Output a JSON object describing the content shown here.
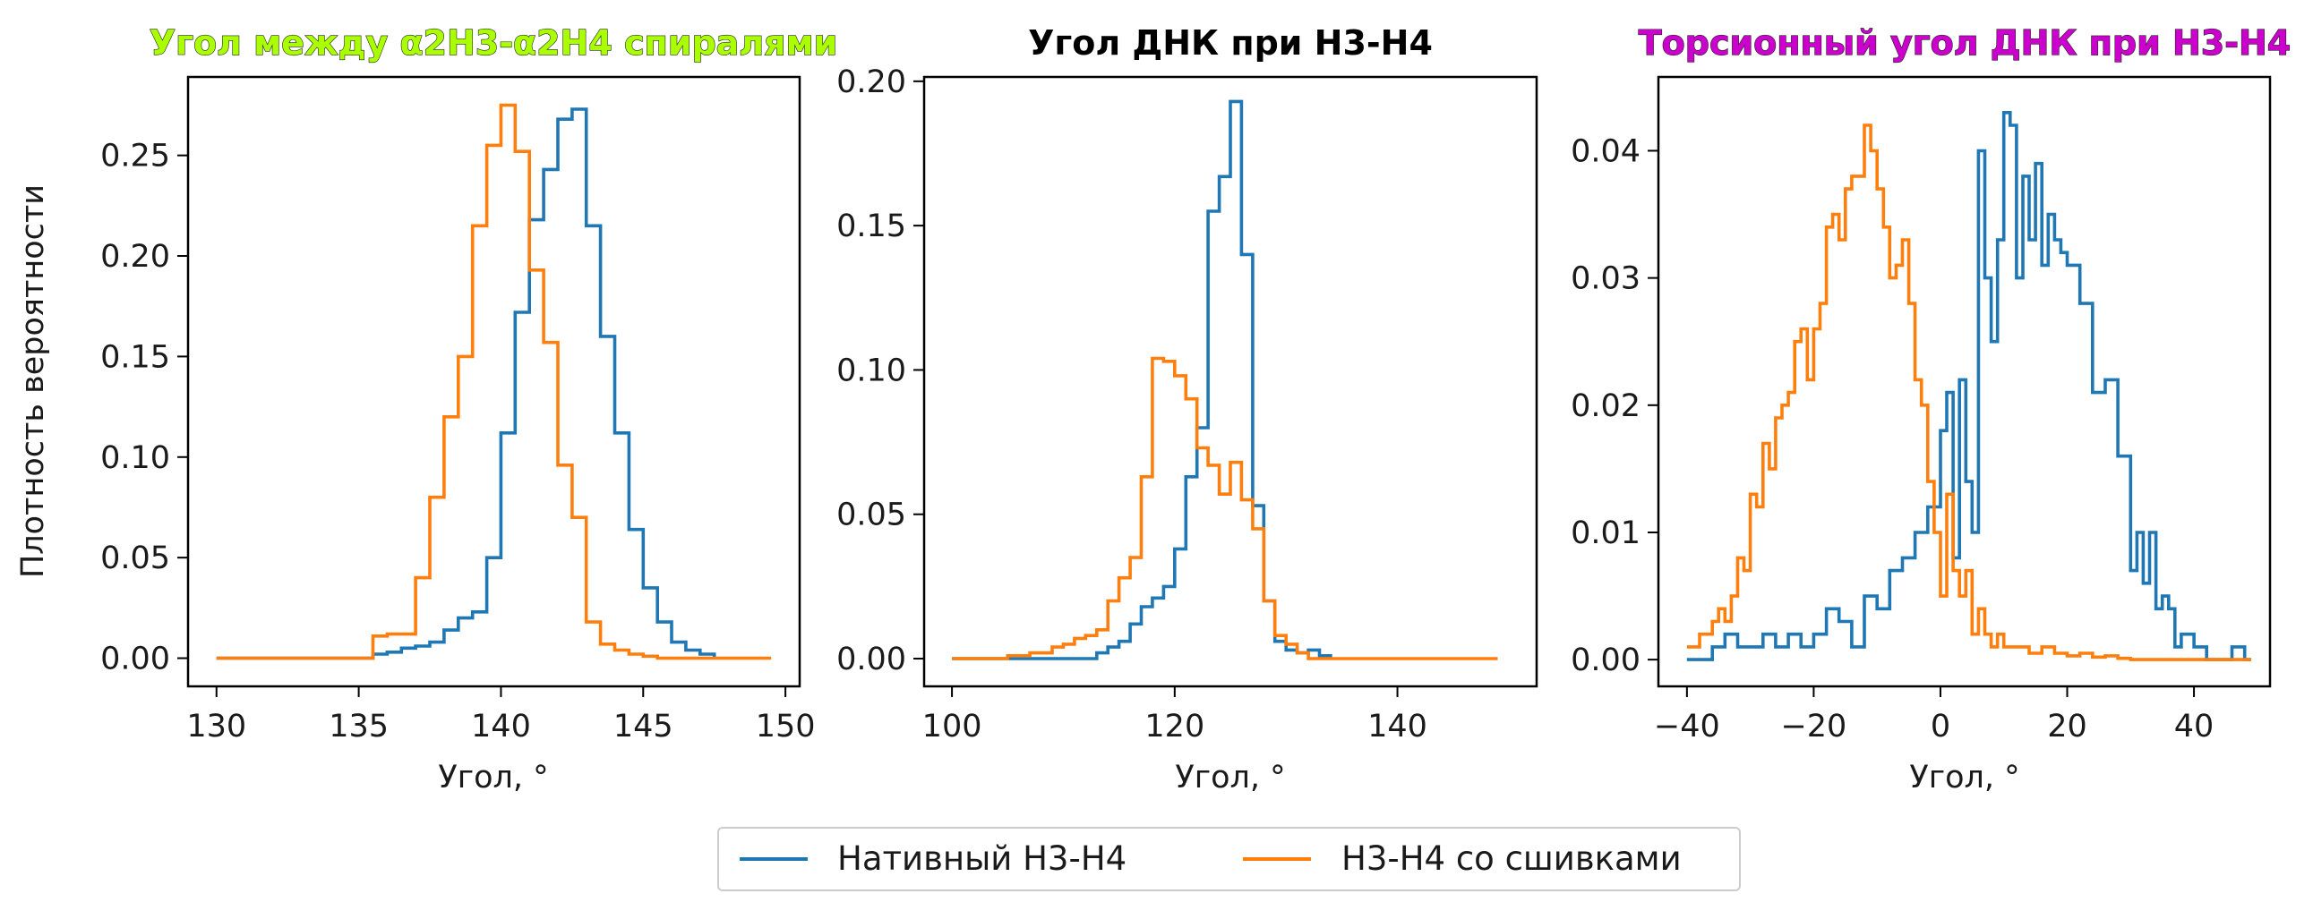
{
  "legend": {
    "entries": [
      {
        "label": "Нативный H3-H4",
        "color": "#1f77b4"
      },
      {
        "label": "H3-H4 со сшивками",
        "color": "#ff7f0e"
      }
    ]
  },
  "chart_data": [
    {
      "type": "line",
      "step": true,
      "title": "Угол между α2H3-α2H4 спиралями",
      "title_color": "#aaff00",
      "xlabel": "Угол, °",
      "ylabel": "Плотность вероятности",
      "xlim": [
        129,
        150.5
      ],
      "ylim": [
        -0.014,
        0.289
      ],
      "xticks": [
        130,
        135,
        140,
        145,
        150
      ],
      "yticks": [
        0.0,
        0.05,
        0.1,
        0.15,
        0.2,
        0.25
      ],
      "ytick_labels": [
        "0.00",
        "0.05",
        "0.10",
        "0.15",
        "0.20",
        "0.25"
      ],
      "series": [
        {
          "name": "Нативный H3-H4",
          "color": "#1f77b4",
          "x": [
            130,
            135.5,
            136,
            136.5,
            137,
            137.5,
            138,
            138.5,
            139,
            139.5,
            140,
            140.5,
            141,
            141.5,
            142,
            142.5,
            143,
            143.5,
            144,
            144.5,
            145,
            145.5,
            146,
            146.5,
            147,
            147.5
          ],
          "y": [
            0,
            0.002,
            0.003,
            0.005,
            0.006,
            0.008,
            0.014,
            0.02,
            0.023,
            0.05,
            0.112,
            0.172,
            0.218,
            0.243,
            0.268,
            0.273,
            0.215,
            0.16,
            0.112,
            0.064,
            0.035,
            0.018,
            0.008,
            0.004,
            0.002,
            0
          ]
        },
        {
          "name": "H3-H4 со сшивками",
          "color": "#ff7f0e",
          "x": [
            130,
            135.5,
            136,
            137,
            137.5,
            138,
            138.5,
            139,
            139.5,
            140,
            140.5,
            141,
            141.5,
            142,
            142.5,
            143,
            143.5,
            144,
            144.5,
            145,
            145.5,
            149.5
          ],
          "y": [
            0,
            0.011,
            0.012,
            0.04,
            0.08,
            0.12,
            0.15,
            0.215,
            0.255,
            0.275,
            0.252,
            0.193,
            0.157,
            0.096,
            0.07,
            0.018,
            0.007,
            0.004,
            0.002,
            0.001,
            0,
            0
          ]
        }
      ]
    },
    {
      "type": "line",
      "step": true,
      "title": "Угол ДНК при H3-H4",
      "title_color": "#000000",
      "xlabel": "Угол, °",
      "ylabel": "",
      "xlim": [
        97.5,
        152.5
      ],
      "ylim": [
        -0.0096,
        0.2015
      ],
      "xticks": [
        100,
        120,
        140
      ],
      "yticks": [
        0.0,
        0.05,
        0.1,
        0.15,
        0.2
      ],
      "ytick_labels": [
        "0.00",
        "0.05",
        "0.10",
        "0.15",
        "0.20"
      ],
      "series": [
        {
          "name": "Нативный H3-H4",
          "color": "#1f77b4",
          "x": [
            100,
            113,
            114,
            115,
            116,
            117,
            118,
            119,
            120,
            121,
            122,
            123,
            124,
            125,
            126,
            127,
            128,
            129,
            130,
            131,
            132,
            133,
            134
          ],
          "y": [
            0,
            0.002,
            0.004,
            0.006,
            0.012,
            0.018,
            0.021,
            0.025,
            0.038,
            0.063,
            0.08,
            0.155,
            0.167,
            0.193,
            0.14,
            0.053,
            0.02,
            0.006,
            0.003,
            0.002,
            0.003,
            0.001,
            0
          ]
        },
        {
          "name": "H3-H4 со сшивками",
          "color": "#ff7f0e",
          "x": [
            100,
            105,
            107,
            109,
            110,
            111,
            112,
            113,
            114,
            115,
            116,
            117,
            118,
            119,
            120,
            121,
            122,
            123,
            124,
            125,
            126,
            127,
            128,
            129,
            130,
            131,
            132,
            149
          ],
          "y": [
            0,
            0.001,
            0.002,
            0.004,
            0.005,
            0.007,
            0.008,
            0.01,
            0.02,
            0.028,
            0.035,
            0.063,
            0.104,
            0.103,
            0.098,
            0.09,
            0.073,
            0.067,
            0.057,
            0.068,
            0.055,
            0.045,
            0.02,
            0.008,
            0.005,
            0.002,
            0,
            0
          ]
        }
      ]
    },
    {
      "type": "line",
      "step": true,
      "title": "Торсионный угол ДНК при H3-H4",
      "title_color": "#cc00cc",
      "xlabel": "Угол, °",
      "ylabel": "",
      "xlim": [
        -44.5,
        52
      ],
      "ylim": [
        -0.0021,
        0.0458
      ],
      "xticks": [
        -40,
        -20,
        0,
        20,
        40
      ],
      "xtick_labels": [
        "−40",
        "−20",
        "0",
        "20",
        "40"
      ],
      "yticks": [
        0.0,
        0.01,
        0.02,
        0.03,
        0.04
      ],
      "ytick_labels": [
        "0.00",
        "0.01",
        "0.02",
        "0.03",
        "0.04"
      ],
      "series": [
        {
          "name": "Нативный H3-H4",
          "color": "#1f77b4",
          "x": [
            -40,
            -36,
            -34,
            -32,
            -30,
            -28,
            -26,
            -24,
            -22,
            -20,
            -18,
            -16,
            -14,
            -12,
            -10,
            -8,
            -6,
            -4,
            -2,
            0,
            1,
            2,
            3,
            4,
            5,
            6,
            7,
            8,
            9,
            10,
            11,
            12,
            13,
            14,
            15,
            16,
            17,
            18,
            19,
            20,
            22,
            24,
            26,
            28,
            30,
            31,
            32,
            33,
            34,
            35,
            36,
            37,
            38,
            40,
            42,
            46,
            48,
            49
          ],
          "y": [
            0,
            0.001,
            0.002,
            0.001,
            0.001,
            0.002,
            0.001,
            0.002,
            0.001,
            0.002,
            0.004,
            0.003,
            0.001,
            0.005,
            0.004,
            0.007,
            0.008,
            0.01,
            0.012,
            0.018,
            0.021,
            0.008,
            0.022,
            0.014,
            0.01,
            0.04,
            0.03,
            0.025,
            0.033,
            0.043,
            0.042,
            0.03,
            0.038,
            0.033,
            0.039,
            0.031,
            0.035,
            0.033,
            0.032,
            0.031,
            0.028,
            0.021,
            0.022,
            0.016,
            0.007,
            0.01,
            0.006,
            0.01,
            0.004,
            0.005,
            0.004,
            0.001,
            0.002,
            0.001,
            0,
            0.001,
            0,
            0
          ]
        },
        {
          "name": "H3-H4 со сшивками",
          "color": "#ff7f0e",
          "x": [
            -40,
            -39,
            -38,
            -37,
            -36,
            -35,
            -34,
            -33,
            -32,
            -31,
            -30,
            -29,
            -28,
            -27,
            -26,
            -25,
            -24,
            -23,
            -22,
            -21,
            -20,
            -19,
            -18,
            -17,
            -16,
            -15,
            -14,
            -13,
            -12,
            -11,
            -10,
            -9,
            -8,
            -7,
            -6,
            -5,
            -4,
            -3,
            -2,
            -1,
            0,
            1,
            2,
            3,
            4,
            5,
            6,
            7,
            8,
            9,
            10,
            11,
            12,
            14,
            16,
            18,
            20,
            22,
            24,
            26,
            28,
            30,
            49
          ],
          "y": [
            0.001,
            0.001,
            0.002,
            0.002,
            0.003,
            0.004,
            0.003,
            0.005,
            0.008,
            0.007,
            0.013,
            0.012,
            0.017,
            0.015,
            0.019,
            0.02,
            0.021,
            0.025,
            0.026,
            0.022,
            0.026,
            0.028,
            0.034,
            0.035,
            0.033,
            0.037,
            0.038,
            0.038,
            0.042,
            0.04,
            0.037,
            0.034,
            0.03,
            0.031,
            0.033,
            0.028,
            0.022,
            0.02,
            0.014,
            0.01,
            0.005,
            0.013,
            0.007,
            0.005,
            0.007,
            0.002,
            0.004,
            0.002,
            0.001,
            0.002,
            0.001,
            0.001,
            0.001,
            0.0005,
            0.001,
            0.0005,
            0.0003,
            0.0005,
            0.0002,
            0.0003,
            0.0001,
            0,
            0
          ]
        }
      ]
    }
  ]
}
